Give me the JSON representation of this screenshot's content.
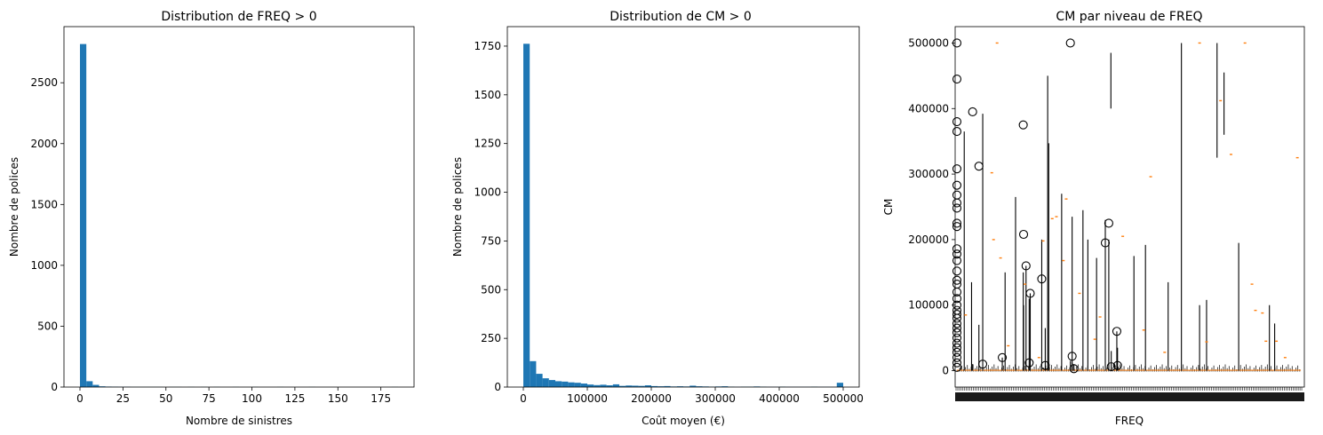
{
  "chart_data": [
    {
      "type": "bar",
      "title": "Distribution de FREQ > 0",
      "xlabel": "Nombre de sinistres",
      "ylabel": "Nombre de polices",
      "xlim": [
        -9.3,
        194.3
      ],
      "ylim": [
        0,
        2961
      ],
      "xticks": [
        0,
        25,
        50,
        75,
        100,
        125,
        150,
        175
      ],
      "yticks": [
        0,
        500,
        1000,
        1500,
        2000,
        2500
      ],
      "bin_width": 3.7,
      "bins_start": 0,
      "values": [
        2818,
        48,
        18,
        6,
        4,
        3,
        2,
        2,
        1,
        1,
        1,
        1,
        1,
        0,
        1,
        1,
        0,
        1,
        0,
        1,
        0,
        1,
        0,
        0,
        1,
        0,
        0,
        1,
        0,
        0,
        0,
        1,
        0,
        0,
        0,
        0,
        1,
        0,
        0,
        0,
        0,
        0,
        0,
        0,
        0,
        0,
        0,
        0,
        0,
        1
      ],
      "color": "#1f77b4",
      "grid": false
    },
    {
      "type": "bar",
      "title": "Distribution de CM > 0",
      "xlabel": "Coût moyen (€)",
      "ylabel": "Nombre de polices",
      "xlim": [
        -25000,
        525000
      ],
      "ylim": [
        0,
        1850
      ],
      "xticks": [
        0,
        100000,
        200000,
        300000,
        400000,
        500000
      ],
      "yticks": [
        0,
        250,
        500,
        750,
        1000,
        1250,
        1500,
        1750
      ],
      "bin_width": 10000,
      "bins_start": 0,
      "values": [
        1762,
        133,
        68,
        45,
        36,
        30,
        28,
        24,
        22,
        18,
        13,
        10,
        12,
        9,
        14,
        6,
        8,
        7,
        6,
        9,
        5,
        4,
        5,
        3,
        4,
        3,
        7,
        4,
        3,
        2,
        3,
        4,
        2,
        1,
        2,
        2,
        3,
        2,
        1,
        1,
        2,
        1,
        1,
        1,
        1,
        2,
        1,
        1,
        1,
        22
      ],
      "color": "#1f77b4",
      "grid": false
    },
    {
      "type": "box",
      "title": "CM par niveau de FREQ",
      "xlabel": "FREQ",
      "ylabel": "CM",
      "ylim": [
        -25000,
        525000
      ],
      "yticks": [
        0,
        100000,
        200000,
        300000,
        400000,
        500000
      ],
      "outliers_near_x0": [
        500000,
        445000,
        380000,
        365000,
        308000,
        283000,
        268000,
        256000,
        248000,
        225000,
        220000,
        186000,
        178000,
        168000,
        152000,
        138000,
        132000,
        120000,
        110000,
        100000,
        92000,
        86000,
        80000,
        72000,
        65000,
        58000,
        50000,
        42000,
        35000,
        28000,
        20000,
        12000,
        5000
      ],
      "flagged_boxes": [
        {
          "pos": 0.135,
          "low": 0,
          "high": 20000,
          "flier": 20000
        },
        {
          "pos": 0.05,
          "low": 0,
          "high": 10000,
          "flier": 395000
        },
        {
          "pos": 0.068,
          "low": 0,
          "high": 70000,
          "flier": 312000
        },
        {
          "pos": 0.079,
          "low": 0,
          "high": 392000,
          "flier": 10000
        },
        {
          "pos": 0.195,
          "low": 0,
          "high": 150000,
          "flier": 375000
        },
        {
          "pos": 0.196,
          "low": 0,
          "high": 100000,
          "flier": 208000
        },
        {
          "pos": 0.203,
          "low": 0,
          "high": 160000,
          "flier": 160000
        },
        {
          "pos": 0.212,
          "low": 0,
          "high": 110000,
          "flier": 12000
        },
        {
          "pos": 0.215,
          "low": 0,
          "high": 118000,
          "flier": 118000
        },
        {
          "pos": 0.248,
          "low": 0,
          "high": 200000,
          "flier": 140000
        },
        {
          "pos": 0.258,
          "low": 0,
          "high": 65000,
          "flier": 8000
        },
        {
          "pos": 0.33,
          "low": 0,
          "high": 15000,
          "flier": 500000
        },
        {
          "pos": 0.335,
          "low": 0,
          "high": 12000,
          "flier": 22000
        },
        {
          "pos": 0.34,
          "low": 0,
          "high": 10000,
          "flier": 3000
        },
        {
          "pos": 0.43,
          "low": 0,
          "high": 230000,
          "flier": 195000
        },
        {
          "pos": 0.44,
          "low": 0,
          "high": 200000,
          "flier": 225000
        },
        {
          "pos": 0.447,
          "low": 0,
          "high": 30000,
          "flier": 6000
        },
        {
          "pos": 0.463,
          "low": 0,
          "high": 60000,
          "flier": 60000
        },
        {
          "pos": 0.465,
          "low": 0,
          "high": 35000,
          "flier": 8000
        }
      ],
      "tall_whiskers": [
        {
          "pos": 0.026,
          "low": 0,
          "high": 365000
        },
        {
          "pos": 0.047,
          "low": 0,
          "high": 135000
        },
        {
          "pos": 0.143,
          "low": 0,
          "high": 150000
        },
        {
          "pos": 0.173,
          "low": 0,
          "high": 265000
        },
        {
          "pos": 0.265,
          "low": 0,
          "high": 450000
        },
        {
          "pos": 0.268,
          "low": 0,
          "high": 347000
        },
        {
          "pos": 0.305,
          "low": 0,
          "high": 270000
        },
        {
          "pos": 0.335,
          "low": 0,
          "high": 235000
        },
        {
          "pos": 0.366,
          "low": 0,
          "high": 245000
        },
        {
          "pos": 0.38,
          "low": 0,
          "high": 200000
        },
        {
          "pos": 0.405,
          "low": 0,
          "high": 172000
        },
        {
          "pos": 0.446,
          "low": 400000,
          "high": 485000
        },
        {
          "pos": 0.512,
          "low": 0,
          "high": 175000
        },
        {
          "pos": 0.545,
          "low": 0,
          "high": 192000
        },
        {
          "pos": 0.61,
          "low": 0,
          "high": 135000
        },
        {
          "pos": 0.648,
          "low": 0,
          "high": 500000
        },
        {
          "pos": 0.7,
          "low": 0,
          "high": 100000
        },
        {
          "pos": 0.72,
          "low": 0,
          "high": 108000
        },
        {
          "pos": 0.75,
          "low": 325000,
          "high": 500000
        },
        {
          "pos": 0.77,
          "low": 360000,
          "high": 455000
        },
        {
          "pos": 0.812,
          "low": 0,
          "high": 195000
        },
        {
          "pos": 0.9,
          "low": 0,
          "high": 100000
        },
        {
          "pos": 0.915,
          "low": 0,
          "high": 72000
        }
      ],
      "scattered_medians": [
        {
          "pos": 0.03,
          "v": 85000
        },
        {
          "pos": 0.105,
          "v": 302000
        },
        {
          "pos": 0.11,
          "v": 200000
        },
        {
          "pos": 0.12,
          "v": 500000
        },
        {
          "pos": 0.13,
          "v": 172000
        },
        {
          "pos": 0.152,
          "v": 38000
        },
        {
          "pos": 0.2,
          "v": 132000
        },
        {
          "pos": 0.24,
          "v": 20000
        },
        {
          "pos": 0.252,
          "v": 198000
        },
        {
          "pos": 0.278,
          "v": 232000
        },
        {
          "pos": 0.29,
          "v": 235000
        },
        {
          "pos": 0.31,
          "v": 168000
        },
        {
          "pos": 0.318,
          "v": 262000
        },
        {
          "pos": 0.356,
          "v": 118000
        },
        {
          "pos": 0.4,
          "v": 48000
        },
        {
          "pos": 0.415,
          "v": 82000
        },
        {
          "pos": 0.48,
          "v": 205000
        },
        {
          "pos": 0.54,
          "v": 62000
        },
        {
          "pos": 0.56,
          "v": 296000
        },
        {
          "pos": 0.6,
          "v": 28000
        },
        {
          "pos": 0.7,
          "v": 500000
        },
        {
          "pos": 0.72,
          "v": 44000
        },
        {
          "pos": 0.76,
          "v": 412000
        },
        {
          "pos": 0.79,
          "v": 330000
        },
        {
          "pos": 0.83,
          "v": 500000
        },
        {
          "pos": 0.85,
          "v": 132000
        },
        {
          "pos": 0.86,
          "v": 92000
        },
        {
          "pos": 0.88,
          "v": 88000
        },
        {
          "pos": 0.89,
          "v": 45000
        },
        {
          "pos": 0.92,
          "v": 45000
        },
        {
          "pos": 0.945,
          "v": 20000
        },
        {
          "pos": 0.98,
          "v": 325000
        }
      ],
      "median_color": "#ff7f0e",
      "box_color": "#000000",
      "grid": false
    }
  ]
}
